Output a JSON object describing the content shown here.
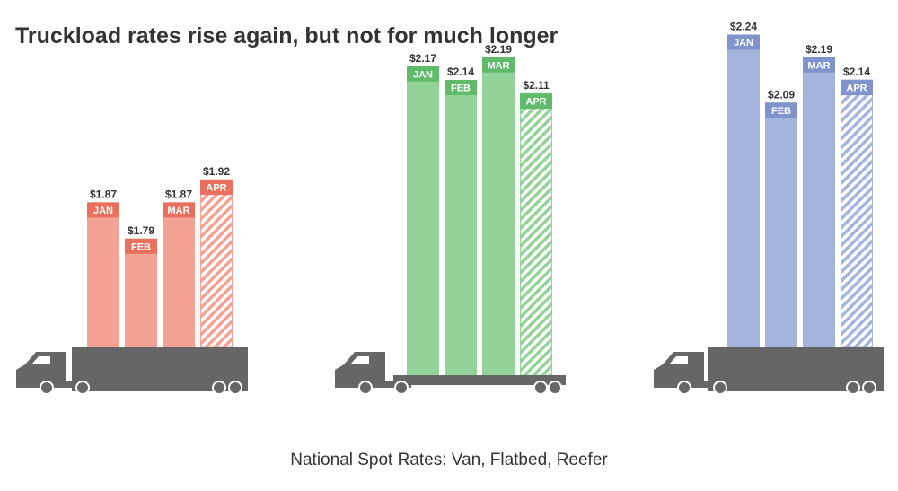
{
  "title": "Truckload rates rise again, but not for much longer",
  "caption": "National Spot Rates: Van, Flatbed, Reefer",
  "chart_data": {
    "type": "bar",
    "categories": [
      "JAN",
      "FEB",
      "MAR",
      "APR"
    ],
    "y_unit": "$",
    "hatched_category": "APR",
    "series": [
      {
        "truck": "van",
        "color": "#f4a294",
        "label_color": "#e8705d",
        "values": [
          1.87,
          1.79,
          1.87,
          1.92
        ],
        "value_labels": [
          "$1.87",
          "$1.79",
          "$1.87",
          "$1.92"
        ]
      },
      {
        "truck": "flatbed",
        "color": "#93d39a",
        "label_color": "#5fbb6a",
        "values": [
          2.17,
          2.14,
          2.19,
          2.11
        ],
        "value_labels": [
          "$2.17",
          "$2.14",
          "$2.19",
          "$2.11"
        ]
      },
      {
        "truck": "reefer",
        "color": "#a4b4dc",
        "label_color": "#7f93cc",
        "values": [
          2.24,
          2.09,
          2.19,
          2.14
        ],
        "value_labels": [
          "$2.24",
          "$2.09",
          "$2.19",
          "$2.14"
        ]
      }
    ]
  }
}
